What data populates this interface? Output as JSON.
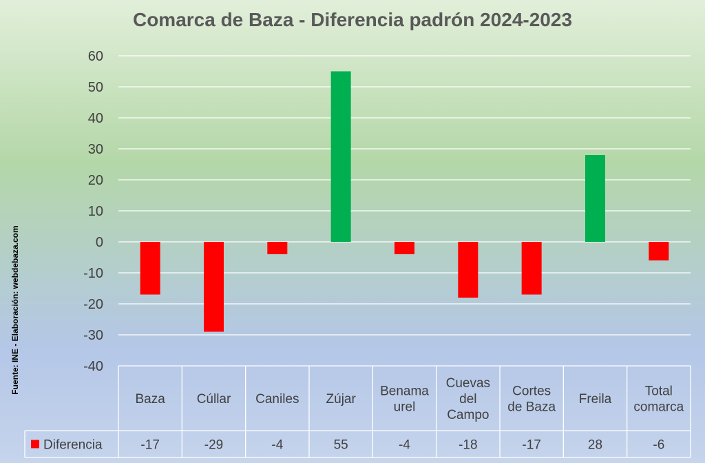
{
  "chart_data": {
    "type": "bar",
    "title": "Comarca de Baza - Diferencia padrón 2024-2023",
    "categories": [
      [
        "Baza"
      ],
      [
        "Cúllar"
      ],
      [
        "Caniles"
      ],
      [
        "Zújar"
      ],
      [
        "Benama",
        "urel"
      ],
      [
        "Cuevas",
        "del",
        "Campo"
      ],
      [
        "Cortes",
        "de Baza"
      ],
      [
        "Freila"
      ],
      [
        "Total",
        "comarca"
      ]
    ],
    "series": [
      {
        "name": "Diferencia",
        "values": [
          -17,
          -29,
          -4,
          55,
          -4,
          -18,
          -17,
          28,
          -6
        ],
        "value_labels": [
          "-17",
          "-29",
          "-4",
          "55",
          "-4",
          "-18",
          "-17",
          "28",
          "-6"
        ]
      }
    ],
    "ylim": [
      -40,
      60
    ],
    "yticks": [
      60,
      50,
      40,
      30,
      20,
      10,
      0,
      -10,
      -20,
      -30,
      -40
    ],
    "ytick_labels": [
      "60",
      "50",
      "40",
      "30",
      "20",
      "10",
      "0",
      "-10",
      "-20",
      "-30",
      "-40"
    ],
    "grid": true,
    "legend": "bottom-left, inside data table",
    "data_table": true,
    "colors": {
      "positive": "#00B050",
      "negative": "#FF0000",
      "legend_marker": "#FF0000",
      "background_top": "#E2EFDA",
      "background_middle": "#B4D7A8",
      "background_bottom": "#B4C7E7"
    },
    "source_note": "Fuente: INE - Elaboración: webdebaza.com"
  }
}
